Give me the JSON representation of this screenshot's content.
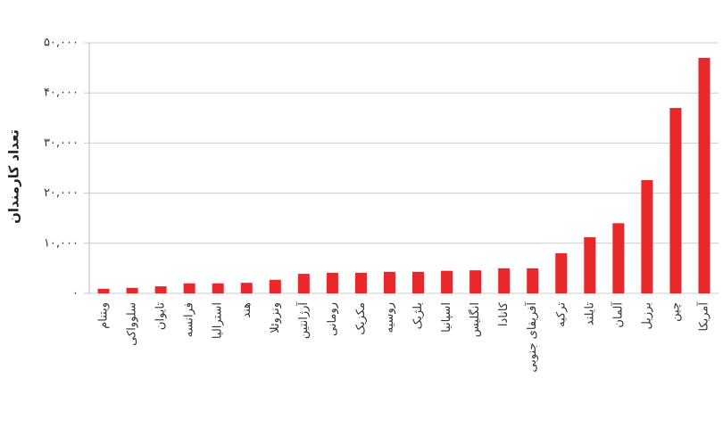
{
  "chart_data": {
    "type": "bar",
    "ylabel": "تعداد کارمندان",
    "categories": [
      "ویتنام",
      "سلوواکی",
      "تایوان",
      "فرانسه",
      "استرالیا",
      "هند",
      "ونزوئلا",
      "آرژانتین",
      "رومانی",
      "مکزیک",
      "روسیه",
      "بلژیک",
      "اسپانیا",
      "انگلیس",
      "کانادا",
      "آفریقای جنوبی",
      "ترکیه",
      "تایلند",
      "آلمان",
      "برزیل",
      "چین",
      "آمریکا"
    ],
    "values": [
      900,
      1100,
      1400,
      2000,
      2000,
      2100,
      2700,
      3900,
      4100,
      4100,
      4300,
      4300,
      4500,
      4600,
      5000,
      5000,
      8000,
      11200,
      14000,
      22600,
      37000,
      47000
    ],
    "color": "#e8282b",
    "ylim": [
      0,
      50000
    ],
    "yticks": [
      {
        "value": 0,
        "label": "۰"
      },
      {
        "value": 10000,
        "label": "۱۰,۰۰۰"
      },
      {
        "value": 20000,
        "label": "۲۰,۰۰۰"
      },
      {
        "value": 30000,
        "label": "۳۰,۰۰۰"
      },
      {
        "value": 40000,
        "label": "۴۰,۰۰۰"
      },
      {
        "value": 50000,
        "label": "۵۰,۰۰۰"
      }
    ],
    "grid": true
  }
}
